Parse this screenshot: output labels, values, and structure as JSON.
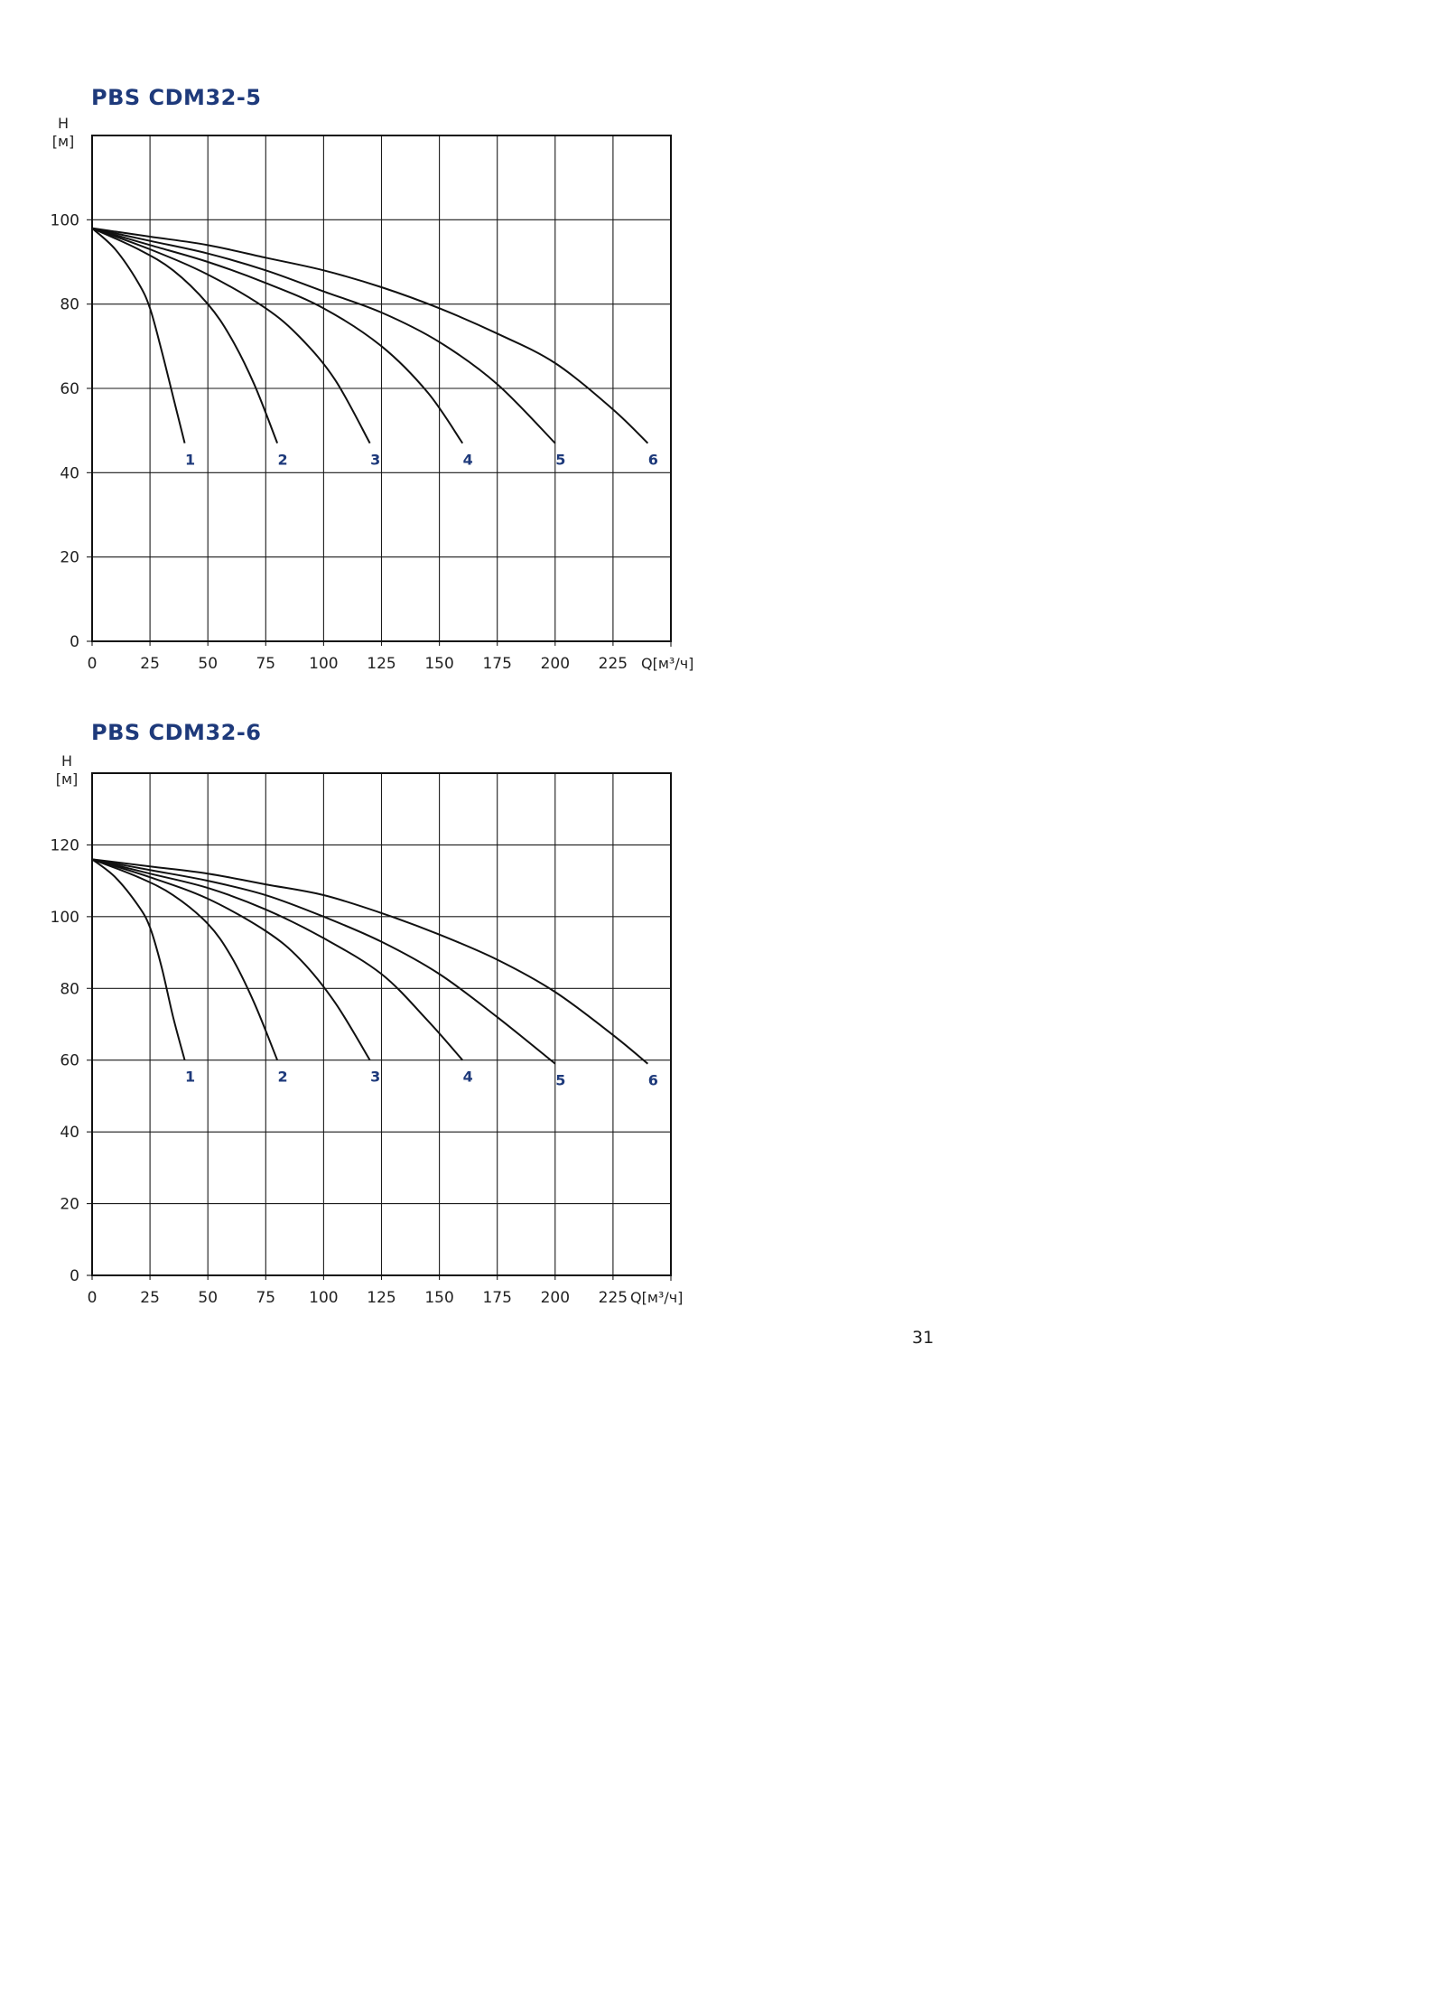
{
  "page_number": "31",
  "chart_data": [
    {
      "type": "line",
      "title": "PBS CDM32-5",
      "ylabel": "H\n[м]",
      "xlabel": "Q[м³/ч]",
      "xlim": [
        0,
        250
      ],
      "ylim": [
        0,
        120
      ],
      "x_ticks": [
        0,
        25,
        50,
        75,
        100,
        125,
        150,
        175,
        200,
        225
      ],
      "y_ticks": [
        0,
        20,
        40,
        60,
        80,
        100
      ],
      "grid": true,
      "series": [
        {
          "name": "1",
          "x": [
            0,
            10,
            20,
            25,
            30,
            35,
            40
          ],
          "y": [
            98,
            93,
            85,
            79,
            69,
            58,
            47
          ]
        },
        {
          "name": "2",
          "x": [
            0,
            20,
            35,
            50,
            60,
            70,
            80
          ],
          "y": [
            98,
            93,
            88,
            80,
            72,
            61,
            47
          ]
        },
        {
          "name": "3",
          "x": [
            0,
            25,
            50,
            75,
            90,
            105,
            120
          ],
          "y": [
            98,
            93,
            87,
            79,
            72,
            62,
            47
          ]
        },
        {
          "name": "4",
          "x": [
            0,
            25,
            50,
            75,
            100,
            125,
            145,
            160
          ],
          "y": [
            98,
            94,
            90,
            85,
            79,
            70,
            59,
            47
          ]
        },
        {
          "name": "5",
          "x": [
            0,
            25,
            50,
            75,
            100,
            125,
            150,
            175,
            200
          ],
          "y": [
            98,
            95,
            92,
            88,
            83,
            78,
            71,
            61,
            47
          ]
        },
        {
          "name": "6",
          "x": [
            0,
            25,
            50,
            75,
            100,
            125,
            150,
            175,
            200,
            225,
            240
          ],
          "y": [
            98,
            96,
            94,
            91,
            88,
            84,
            79,
            73,
            66,
            55,
            47
          ]
        }
      ]
    },
    {
      "type": "line",
      "title": "PBS CDM32-6",
      "ylabel": "H\n[м]",
      "xlabel": "Q[м³/ч]",
      "xlim": [
        0,
        250
      ],
      "ylim": [
        0,
        140
      ],
      "x_ticks": [
        0,
        25,
        50,
        75,
        100,
        125,
        150,
        175,
        200,
        225
      ],
      "y_ticks": [
        0,
        20,
        40,
        60,
        80,
        100,
        120
      ],
      "grid": true,
      "series": [
        {
          "name": "1",
          "x": [
            0,
            10,
            20,
            25,
            30,
            35,
            40
          ],
          "y": [
            116,
            111,
            103,
            97,
            86,
            72,
            60
          ]
        },
        {
          "name": "2",
          "x": [
            0,
            20,
            35,
            50,
            60,
            70,
            80
          ],
          "y": [
            116,
            111,
            106,
            98,
            89,
            76,
            60
          ]
        },
        {
          "name": "3",
          "x": [
            0,
            25,
            50,
            75,
            90,
            105,
            120
          ],
          "y": [
            116,
            111,
            105,
            96,
            88,
            76,
            60
          ]
        },
        {
          "name": "4",
          "x": [
            0,
            25,
            50,
            75,
            100,
            125,
            145,
            160
          ],
          "y": [
            116,
            112,
            108,
            102,
            94,
            84,
            71,
            60
          ]
        },
        {
          "name": "5",
          "x": [
            0,
            25,
            50,
            75,
            100,
            125,
            150,
            175,
            200
          ],
          "y": [
            116,
            113,
            110,
            106,
            100,
            93,
            84,
            72,
            59
          ]
        },
        {
          "name": "6",
          "x": [
            0,
            25,
            50,
            75,
            100,
            125,
            150,
            175,
            200,
            225,
            240
          ],
          "y": [
            116,
            114,
            112,
            109,
            106,
            101,
            95,
            88,
            79,
            67,
            59
          ]
        }
      ]
    }
  ]
}
